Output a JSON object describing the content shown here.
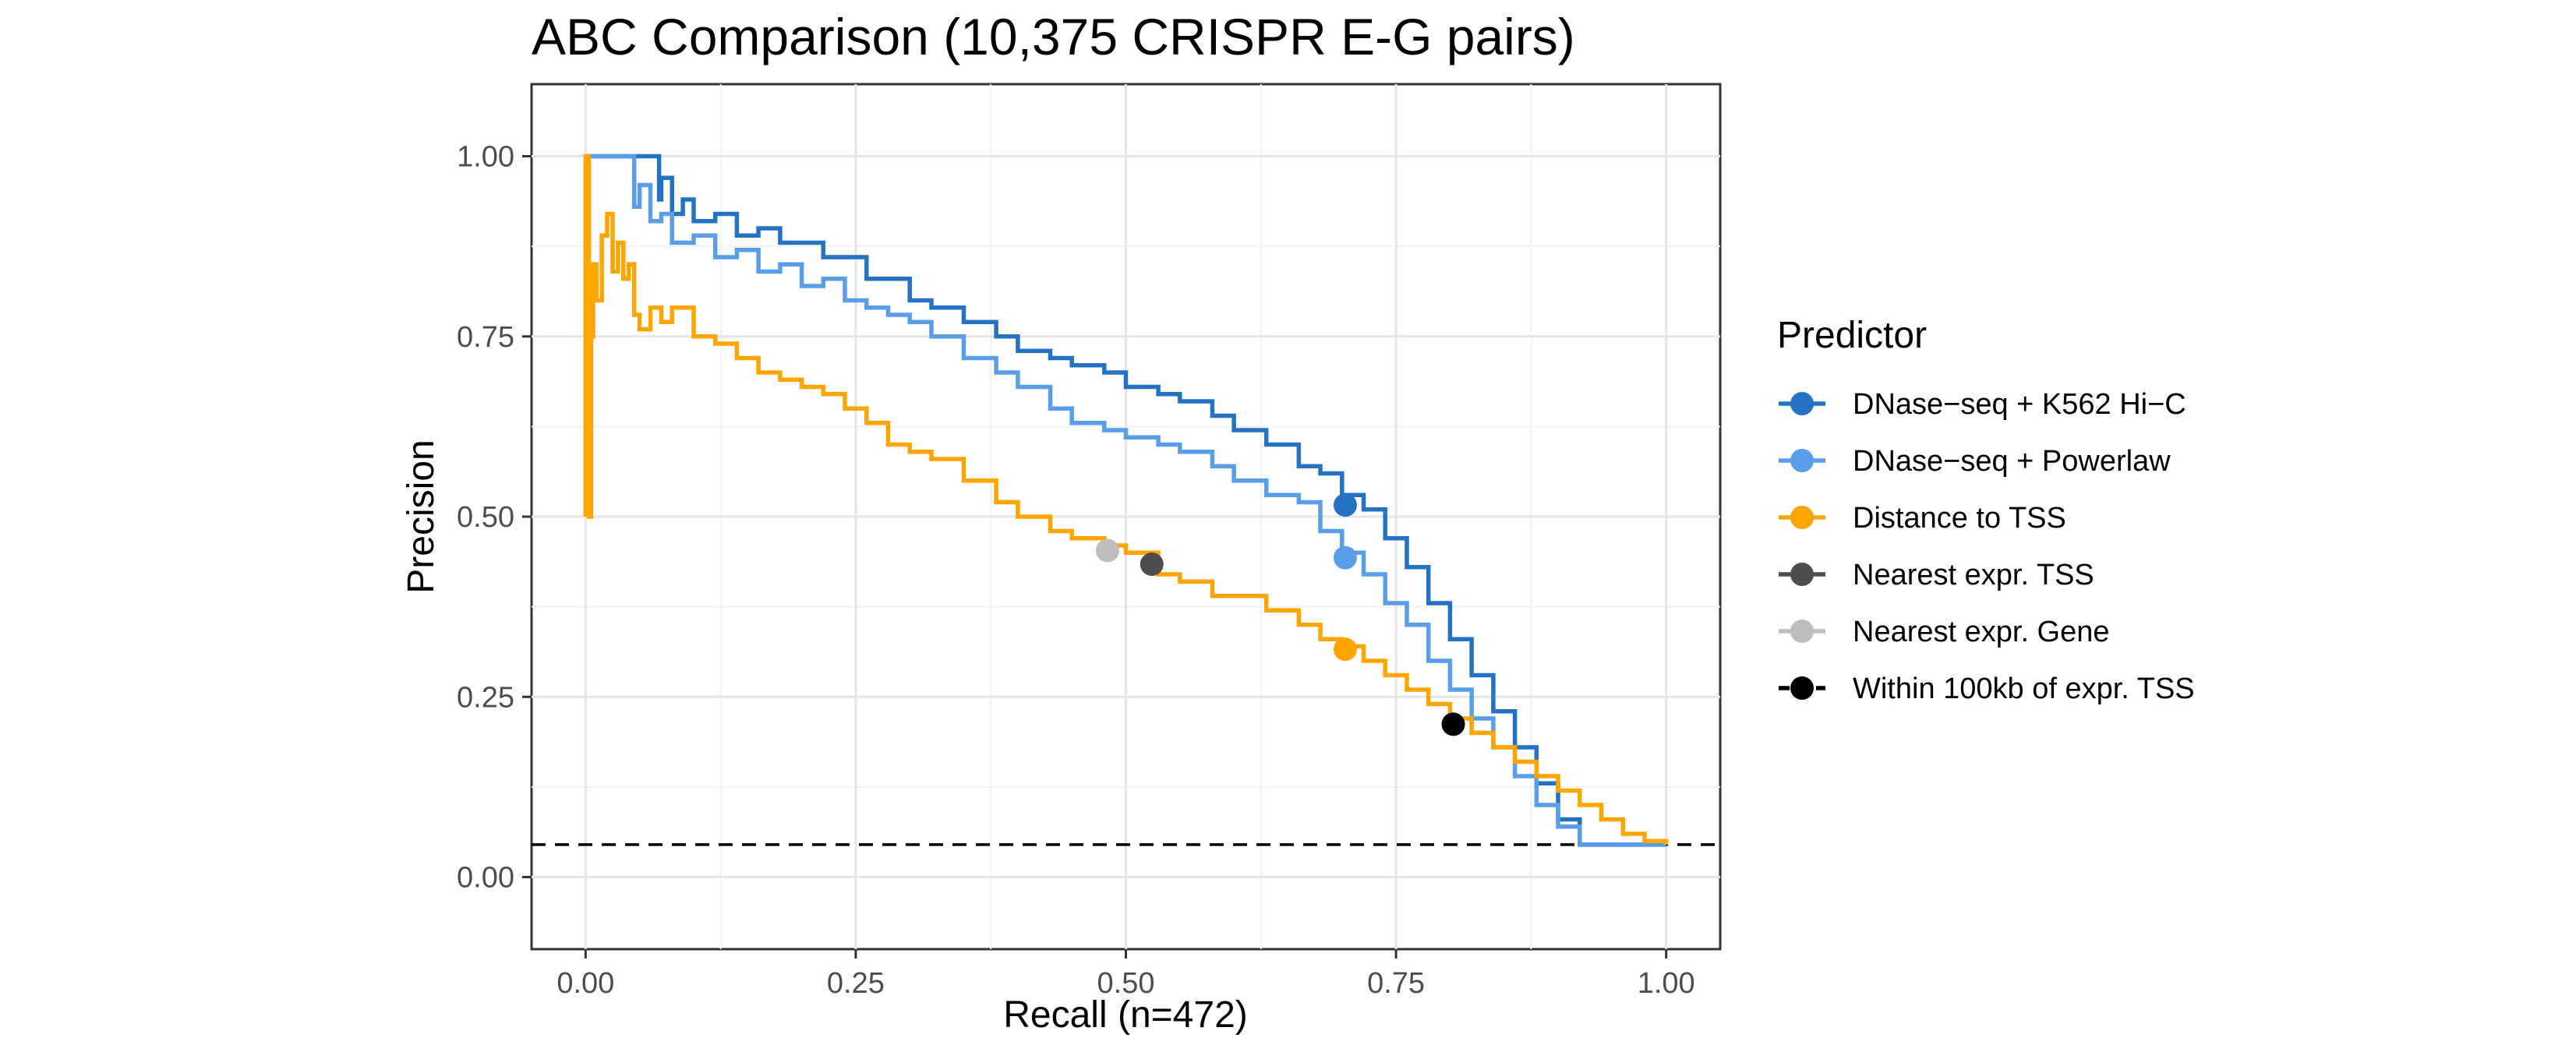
{
  "chart_data": {
    "type": "line",
    "title": "ABC Comparison (10,375 CRISPR E-G pairs)",
    "xlabel": "Recall (n=472)",
    "ylabel": "Precision",
    "xlim": [
      -0.05,
      1.05
    ],
    "ylim": [
      -0.1,
      1.1
    ],
    "xticks": [
      0.0,
      0.25,
      0.5,
      0.75,
      1.0
    ],
    "xtick_labels": [
      "0.00",
      "0.25",
      "0.50",
      "0.75",
      "1.00"
    ],
    "yticks": [
      0.0,
      0.25,
      0.5,
      0.75,
      1.0
    ],
    "ytick_labels": [
      "0.00",
      "0.25",
      "0.50",
      "0.75",
      "1.00"
    ],
    "grid": true,
    "legend_position": "right",
    "legend_title": "Predictor",
    "baseline": {
      "y": 0.045,
      "style": "dashed",
      "color": "#000000"
    },
    "series": [
      {
        "name": "DNase−seq + K562 Hi−C",
        "color": "#2372c4",
        "x": [
          0.0,
          0.065,
          0.068,
          0.07,
          0.08,
          0.09,
          0.1,
          0.12,
          0.14,
          0.16,
          0.18,
          0.2,
          0.22,
          0.24,
          0.26,
          0.28,
          0.3,
          0.32,
          0.35,
          0.38,
          0.4,
          0.43,
          0.45,
          0.48,
          0.5,
          0.53,
          0.55,
          0.58,
          0.6,
          0.63,
          0.66,
          0.68,
          0.7,
          0.72,
          0.74,
          0.76,
          0.78,
          0.8,
          0.82,
          0.84,
          0.86,
          0.88,
          0.9,
          0.92,
          0.93,
          0.95,
          0.97,
          1.0
        ],
        "y": [
          1.0,
          1.0,
          0.94,
          0.97,
          0.92,
          0.94,
          0.91,
          0.92,
          0.89,
          0.9,
          0.88,
          0.88,
          0.86,
          0.86,
          0.83,
          0.83,
          0.8,
          0.79,
          0.77,
          0.75,
          0.73,
          0.72,
          0.71,
          0.7,
          0.68,
          0.67,
          0.66,
          0.64,
          0.62,
          0.6,
          0.57,
          0.56,
          0.53,
          0.51,
          0.47,
          0.43,
          0.38,
          0.33,
          0.28,
          0.23,
          0.18,
          0.13,
          0.08,
          0.045,
          0.045,
          0.045,
          0.045,
          0.045
        ]
      },
      {
        "name": "DNase−seq + Powerlaw",
        "color": "#5a9de8",
        "x": [
          0.0,
          0.04,
          0.045,
          0.05,
          0.06,
          0.07,
          0.08,
          0.1,
          0.12,
          0.14,
          0.16,
          0.18,
          0.2,
          0.22,
          0.24,
          0.26,
          0.28,
          0.3,
          0.32,
          0.35,
          0.38,
          0.4,
          0.43,
          0.45,
          0.48,
          0.5,
          0.53,
          0.55,
          0.58,
          0.6,
          0.63,
          0.66,
          0.68,
          0.7,
          0.72,
          0.74,
          0.76,
          0.78,
          0.8,
          0.82,
          0.84,
          0.86,
          0.88,
          0.9,
          0.92,
          0.95,
          1.0
        ],
        "y": [
          1.0,
          1.0,
          0.93,
          0.96,
          0.91,
          0.92,
          0.88,
          0.89,
          0.86,
          0.87,
          0.84,
          0.85,
          0.82,
          0.83,
          0.8,
          0.79,
          0.78,
          0.77,
          0.75,
          0.72,
          0.7,
          0.68,
          0.65,
          0.63,
          0.62,
          0.61,
          0.6,
          0.59,
          0.57,
          0.55,
          0.53,
          0.52,
          0.48,
          0.45,
          0.42,
          0.38,
          0.35,
          0.3,
          0.26,
          0.22,
          0.18,
          0.14,
          0.1,
          0.07,
          0.045,
          0.045,
          0.045
        ]
      },
      {
        "name": "Distance to TSS",
        "color": "#ffa500",
        "x": [
          0.0,
          0.0,
          0.003,
          0.005,
          0.007,
          0.01,
          0.015,
          0.02,
          0.025,
          0.03,
          0.035,
          0.04,
          0.045,
          0.05,
          0.06,
          0.07,
          0.08,
          0.1,
          0.12,
          0.14,
          0.16,
          0.18,
          0.2,
          0.22,
          0.24,
          0.26,
          0.28,
          0.3,
          0.32,
          0.35,
          0.38,
          0.4,
          0.43,
          0.45,
          0.48,
          0.5,
          0.53,
          0.55,
          0.58,
          0.6,
          0.63,
          0.66,
          0.68,
          0.7,
          0.72,
          0.74,
          0.76,
          0.78,
          0.8,
          0.82,
          0.84,
          0.86,
          0.88,
          0.9,
          0.92,
          0.94,
          0.96,
          0.98,
          1.0
        ],
        "y": [
          0.5,
          1.0,
          0.5,
          0.75,
          0.85,
          0.8,
          0.89,
          0.92,
          0.84,
          0.88,
          0.83,
          0.85,
          0.78,
          0.76,
          0.79,
          0.77,
          0.79,
          0.75,
          0.74,
          0.72,
          0.7,
          0.69,
          0.68,
          0.67,
          0.65,
          0.63,
          0.6,
          0.59,
          0.58,
          0.55,
          0.52,
          0.5,
          0.48,
          0.47,
          0.46,
          0.45,
          0.42,
          0.41,
          0.39,
          0.39,
          0.37,
          0.35,
          0.33,
          0.32,
          0.3,
          0.28,
          0.26,
          0.24,
          0.22,
          0.2,
          0.18,
          0.16,
          0.14,
          0.12,
          0.1,
          0.08,
          0.06,
          0.05,
          0.045
        ]
      }
    ],
    "points": [
      {
        "name": "DNase−seq + K562 Hi−C",
        "color": "#2372c4",
        "x": 0.703,
        "y": 0.516
      },
      {
        "name": "DNase−seq + Powerlaw",
        "color": "#5a9de8",
        "x": 0.703,
        "y": 0.443
      },
      {
        "name": "Distance to TSS",
        "color": "#ffa500",
        "x": 0.703,
        "y": 0.316
      },
      {
        "name": "Nearest expr. TSS",
        "color": "#4d4d4d",
        "x": 0.524,
        "y": 0.434
      },
      {
        "name": "Nearest expr. Gene",
        "color": "#bdbdbd",
        "x": 0.483,
        "y": 0.453
      },
      {
        "name": "Within 100kb of expr. TSS",
        "color": "#000000",
        "x": 0.803,
        "y": 0.212
      }
    ],
    "legend": [
      {
        "label": "DNase−seq + K562 Hi−C",
        "color": "#2372c4"
      },
      {
        "label": "DNase−seq + Powerlaw",
        "color": "#5a9de8"
      },
      {
        "label": "Distance to TSS",
        "color": "#ffa500"
      },
      {
        "label": "Nearest expr. TSS",
        "color": "#4d4d4d"
      },
      {
        "label": "Nearest expr. Gene",
        "color": "#bdbdbd"
      },
      {
        "label": "Within 100kb of expr. TSS",
        "color": "#000000"
      }
    ]
  }
}
